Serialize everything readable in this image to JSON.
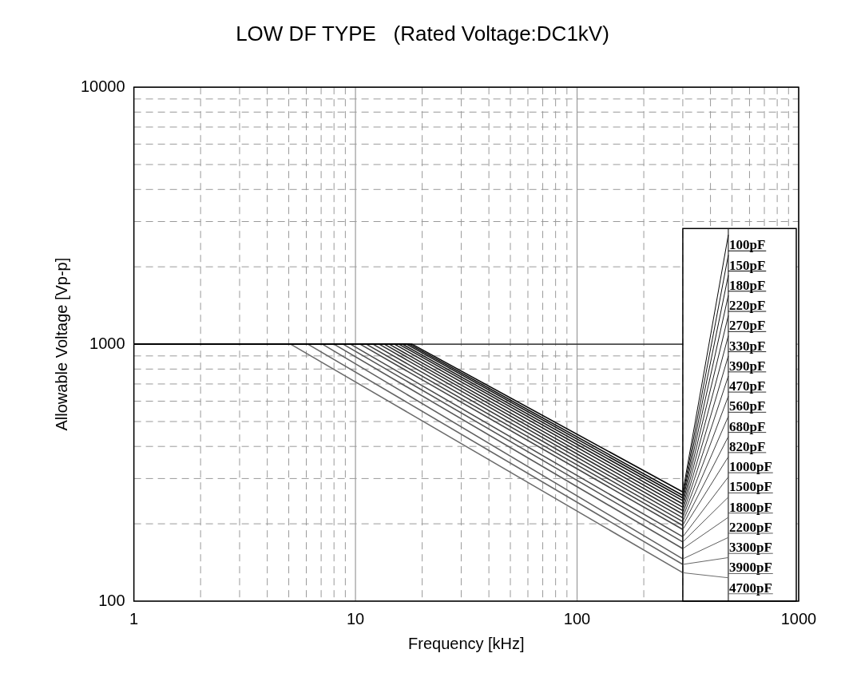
{
  "chart_data": {
    "type": "line",
    "title": "LOW DF TYPE   (Rated Voltage:DC1kV)",
    "xlabel": "Frequency [kHz]",
    "ylabel": "Allowable Voltage [Vp-p]",
    "log": "xy",
    "grid": true,
    "marker": "none",
    "line_style": "solid",
    "legend": "right",
    "xlim": [
      1,
      1000
    ],
    "ylim": [
      100,
      10000
    ],
    "xticks": [
      1,
      {
        "value": 2,
        "label": null
      },
      {
        "value": 3,
        "label": null
      },
      {
        "value": 4,
        "label": null
      },
      {
        "value": 5,
        "label": null
      },
      {
        "value": 6,
        "label": null
      },
      {
        "value": 7,
        "label": null
      },
      {
        "value": 8,
        "label": null
      },
      {
        "value": 9,
        "label": null
      },
      10,
      {
        "value": 20,
        "label": null
      },
      {
        "value": 30,
        "label": null
      },
      {
        "value": 40,
        "label": null
      },
      {
        "value": 50,
        "label": null
      },
      {
        "value": 60,
        "label": null
      },
      {
        "value": 70,
        "label": null
      },
      {
        "value": 80,
        "label": null
      },
      {
        "value": 90,
        "label": null
      },
      100,
      {
        "value": 200,
        "label": null
      },
      {
        "value": 300,
        "label": null
      },
      {
        "value": 400,
        "label": null
      },
      {
        "value": 500,
        "label": null
      },
      {
        "value": 600,
        "label": null
      },
      {
        "value": 700,
        "label": null
      },
      {
        "value": 800,
        "label": null
      },
      {
        "value": 900,
        "label": null
      },
      1000
    ],
    "yticks": [
      100,
      {
        "value": 200,
        "label": null
      },
      {
        "value": 300,
        "label": null
      },
      {
        "value": 400,
        "label": null
      },
      {
        "value": 500,
        "label": null
      },
      {
        "value": 600,
        "label": null
      },
      {
        "value": 700,
        "label": null
      },
      {
        "value": 800,
        "label": null
      },
      {
        "value": 900,
        "label": null
      },
      1000,
      {
        "value": 2000,
        "label": null
      },
      {
        "value": 3000,
        "label": null
      },
      {
        "value": 4000,
        "label": null
      },
      {
        "value": 5000,
        "label": null
      },
      {
        "value": 6000,
        "label": null
      },
      {
        "value": 7000,
        "label": null
      },
      {
        "value": 8000,
        "label": null
      },
      {
        "value": 9000,
        "label": null
      },
      10000
    ],
    "series": [
      {
        "color": "#000000",
        "x": [
          1,
          300
        ],
        "values": [
          1000,
          1000
        ]
      },
      {
        "name": "100pF",
        "color": "#060606",
        "x": [
          1,
          18,
          300
        ],
        "values": [
          1000,
          1000,
          266
        ]
      },
      {
        "name": "150pF",
        "color": "#0c0c0c",
        "x": [
          1,
          17.5,
          300
        ],
        "values": [
          1000,
          1000,
          258
        ]
      },
      {
        "name": "180pF",
        "color": "#121212",
        "x": [
          1,
          17,
          300
        ],
        "values": [
          1000,
          1000,
          252
        ]
      },
      {
        "name": "220pF",
        "color": "#181818",
        "x": [
          1,
          16.3,
          300
        ],
        "values": [
          1000,
          1000,
          246
        ]
      },
      {
        "name": "270pF",
        "color": "#1e1e1e",
        "x": [
          1,
          15.7,
          300
        ],
        "values": [
          1000,
          1000,
          239
        ]
      },
      {
        "name": "330pF",
        "color": "#242424",
        "x": [
          1,
          15,
          300
        ],
        "values": [
          1000,
          1000,
          232
        ]
      },
      {
        "name": "390pF",
        "color": "#2a2a2a",
        "x": [
          1,
          14.2,
          300
        ],
        "values": [
          1000,
          1000,
          225
        ]
      },
      {
        "name": "470pF",
        "color": "#303030",
        "x": [
          1,
          13.5,
          300
        ],
        "values": [
          1000,
          1000,
          218
        ]
      },
      {
        "name": "560pF",
        "color": "#363636",
        "x": [
          1,
          12.8,
          300
        ],
        "values": [
          1000,
          1000,
          211
        ]
      },
      {
        "name": "680pF",
        "color": "#3c3c3c",
        "x": [
          1,
          12,
          300
        ],
        "values": [
          1000,
          1000,
          204
        ]
      },
      {
        "name": "820pF",
        "color": "#424242",
        "x": [
          1,
          11.2,
          300
        ],
        "values": [
          1000,
          1000,
          197
        ]
      },
      {
        "name": "1000pF",
        "color": "#484848",
        "x": [
          1,
          10.5,
          300
        ],
        "values": [
          1000,
          1000,
          190
        ]
      },
      {
        "name": "1500pF",
        "color": "#4e4e4e",
        "x": [
          1,
          9.5,
          300
        ],
        "values": [
          1000,
          1000,
          178
        ]
      },
      {
        "name": "1800pF",
        "color": "#545454",
        "x": [
          1,
          8.8,
          300
        ],
        "values": [
          1000,
          1000,
          170
        ]
      },
      {
        "name": "2200pF",
        "color": "#5a5a5a",
        "x": [
          1,
          8,
          300
        ],
        "values": [
          1000,
          1000,
          160
        ]
      },
      {
        "name": "3300pF",
        "color": "#606060",
        "x": [
          1,
          7.1,
          300
        ],
        "values": [
          1000,
          1000,
          146
        ]
      },
      {
        "name": "3900pF",
        "color": "#666666",
        "x": [
          1,
          6.1,
          300
        ],
        "values": [
          1000,
          1000,
          139
        ]
      },
      {
        "name": "4700pF",
        "color": "#6c6c6c",
        "x": [
          1,
          5.1,
          300
        ],
        "values": [
          1000,
          1000,
          129
        ]
      }
    ]
  }
}
